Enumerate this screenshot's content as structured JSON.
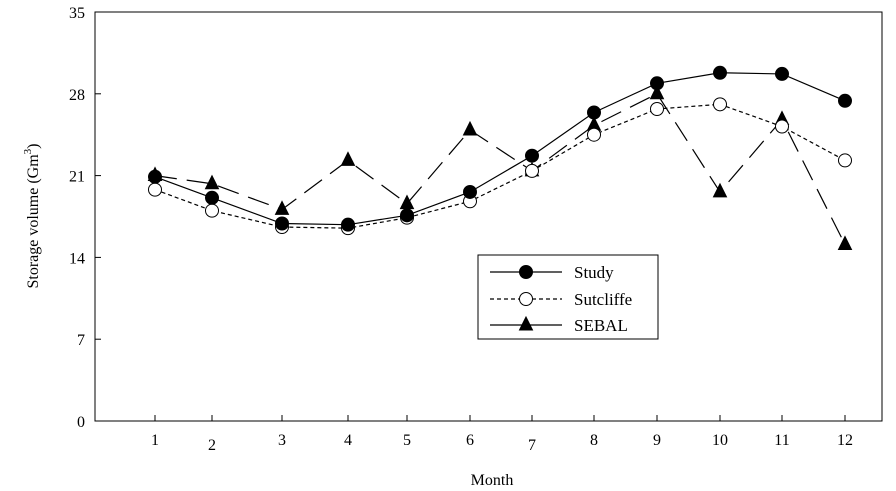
{
  "chart_data": {
    "type": "line",
    "xlabel": "Month",
    "ylabel": "Storage volume (Gm",
    "ylabel_sup": "3",
    "ylabel_close": ")",
    "x": [
      1,
      2,
      3,
      4,
      5,
      6,
      7,
      8,
      9,
      10,
      11,
      12
    ],
    "ylim": [
      0,
      35
    ],
    "yticks": [
      0,
      7,
      14,
      21,
      28,
      35
    ],
    "grid": false,
    "legend_position": "center-right",
    "series": [
      {
        "name": "Study",
        "marker": "filled-circle",
        "line_style": "solid",
        "color": "#000000",
        "values": [
          20.9,
          19.1,
          16.9,
          16.8,
          17.6,
          19.6,
          22.7,
          26.4,
          28.9,
          29.8,
          29.7,
          27.4
        ]
      },
      {
        "name": "Sutcliffe",
        "marker": "open-circle",
        "line_style": "dotted",
        "color": "#000000",
        "values": [
          19.8,
          18.0,
          16.6,
          16.5,
          17.4,
          18.8,
          21.4,
          24.5,
          26.7,
          27.1,
          25.2,
          22.3
        ]
      },
      {
        "name": "SEBAL",
        "marker": "filled-triangle",
        "line_style": "long-dash",
        "color": "#000000",
        "values": [
          21.0,
          20.3,
          18.1,
          22.3,
          18.6,
          24.9,
          21.4,
          25.3,
          28.0,
          19.6,
          25.8,
          15.1
        ]
      }
    ]
  }
}
